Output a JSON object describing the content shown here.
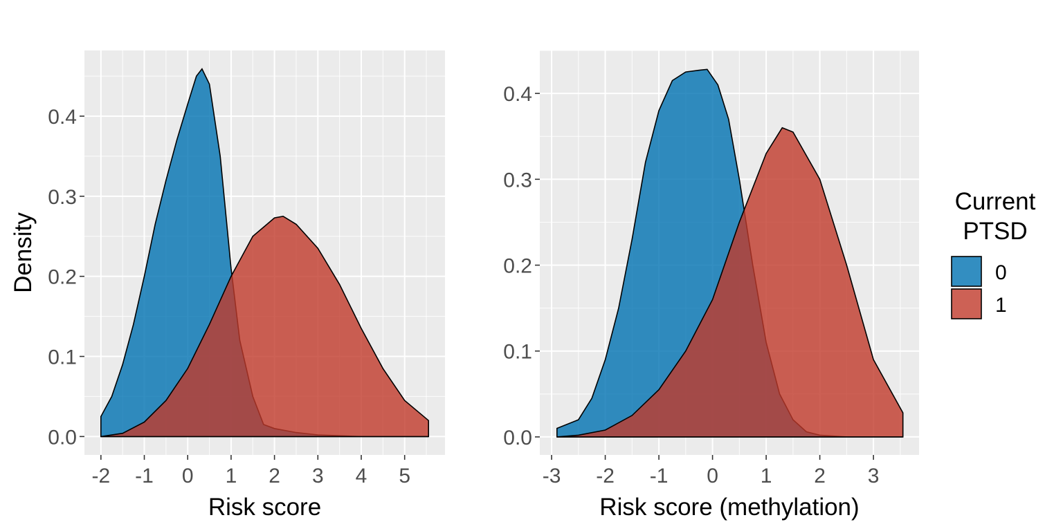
{
  "legend": {
    "title_lines": [
      "Current",
      "PTSD"
    ],
    "items": [
      {
        "label": "0",
        "color": "#0072B2"
      },
      {
        "label": "1",
        "color": "#C0392B"
      }
    ]
  },
  "chart_data": [
    {
      "type": "area",
      "chart_kind": "density",
      "xlabel": "Risk score",
      "ylabel": "Density",
      "xlim": [
        -2.38,
        5.93
      ],
      "ylim": [
        -0.023,
        0.482
      ],
      "xticks": [
        -2,
        -1,
        0,
        1,
        2,
        3,
        4,
        5
      ],
      "yticks": [
        0.0,
        0.1,
        0.2,
        0.3,
        0.4
      ],
      "ytick_labels": [
        "0.0",
        "0.1",
        "0.2",
        "0.3",
        "0.4"
      ],
      "grid": true,
      "legend_position": "right",
      "series": [
        {
          "name": "0",
          "color": "#0072B2",
          "x": [
            -2.0,
            -1.75,
            -1.5,
            -1.25,
            -1.0,
            -0.75,
            -0.5,
            -0.25,
            0.0,
            0.2,
            0.33,
            0.5,
            0.75,
            1.0,
            1.2,
            1.5,
            1.75,
            2.0,
            2.5,
            3.0,
            3.5,
            4.0,
            4.5,
            5.0,
            5.55
          ],
          "y": [
            0.025,
            0.05,
            0.09,
            0.14,
            0.2,
            0.265,
            0.32,
            0.37,
            0.415,
            0.45,
            0.459,
            0.44,
            0.35,
            0.21,
            0.12,
            0.05,
            0.015,
            0.01,
            0.005,
            0.002,
            0.001,
            0.0,
            0.0,
            0.0,
            0.0
          ]
        },
        {
          "name": "1",
          "color": "#C0392B",
          "x": [
            -2.0,
            -1.5,
            -1.0,
            -0.5,
            0.0,
            0.5,
            1.0,
            1.5,
            2.0,
            2.2,
            2.5,
            3.0,
            3.5,
            4.0,
            4.5,
            5.0,
            5.55
          ],
          "y": [
            0.0,
            0.004,
            0.018,
            0.045,
            0.085,
            0.14,
            0.2,
            0.25,
            0.273,
            0.275,
            0.265,
            0.235,
            0.19,
            0.135,
            0.085,
            0.045,
            0.02
          ]
        }
      ]
    },
    {
      "type": "area",
      "chart_kind": "density",
      "xlabel": "Risk score (methylation)",
      "ylabel": "",
      "xlim": [
        -3.22,
        3.85
      ],
      "ylim": [
        -0.021,
        0.45
      ],
      "xticks": [
        -3,
        -2,
        -1,
        0,
        1,
        2,
        3
      ],
      "yticks": [
        0.0,
        0.1,
        0.2,
        0.3,
        0.4
      ],
      "ytick_labels": [
        "0.0",
        "0.1",
        "0.2",
        "0.3",
        "0.4"
      ],
      "grid": true,
      "legend_position": "right",
      "series": [
        {
          "name": "0",
          "color": "#0072B2",
          "x": [
            -2.9,
            -2.5,
            -2.25,
            -2.0,
            -1.75,
            -1.5,
            -1.25,
            -1.0,
            -0.75,
            -0.5,
            -0.25,
            -0.1,
            0.1,
            0.3,
            0.5,
            0.75,
            1.0,
            1.25,
            1.5,
            1.75,
            2.0,
            2.5,
            3.0,
            3.55
          ],
          "y": [
            0.01,
            0.02,
            0.045,
            0.09,
            0.15,
            0.23,
            0.32,
            0.38,
            0.415,
            0.425,
            0.427,
            0.428,
            0.41,
            0.37,
            0.3,
            0.2,
            0.11,
            0.05,
            0.02,
            0.006,
            0.002,
            0.0,
            0.0,
            0.0
          ]
        },
        {
          "name": "1",
          "color": "#C0392B",
          "x": [
            -2.9,
            -2.5,
            -2.0,
            -1.5,
            -1.0,
            -0.5,
            0.0,
            0.5,
            1.0,
            1.3,
            1.5,
            2.0,
            2.5,
            3.0,
            3.55
          ],
          "y": [
            0.0,
            0.002,
            0.008,
            0.025,
            0.055,
            0.1,
            0.16,
            0.25,
            0.33,
            0.36,
            0.355,
            0.3,
            0.2,
            0.09,
            0.028
          ]
        }
      ]
    }
  ]
}
